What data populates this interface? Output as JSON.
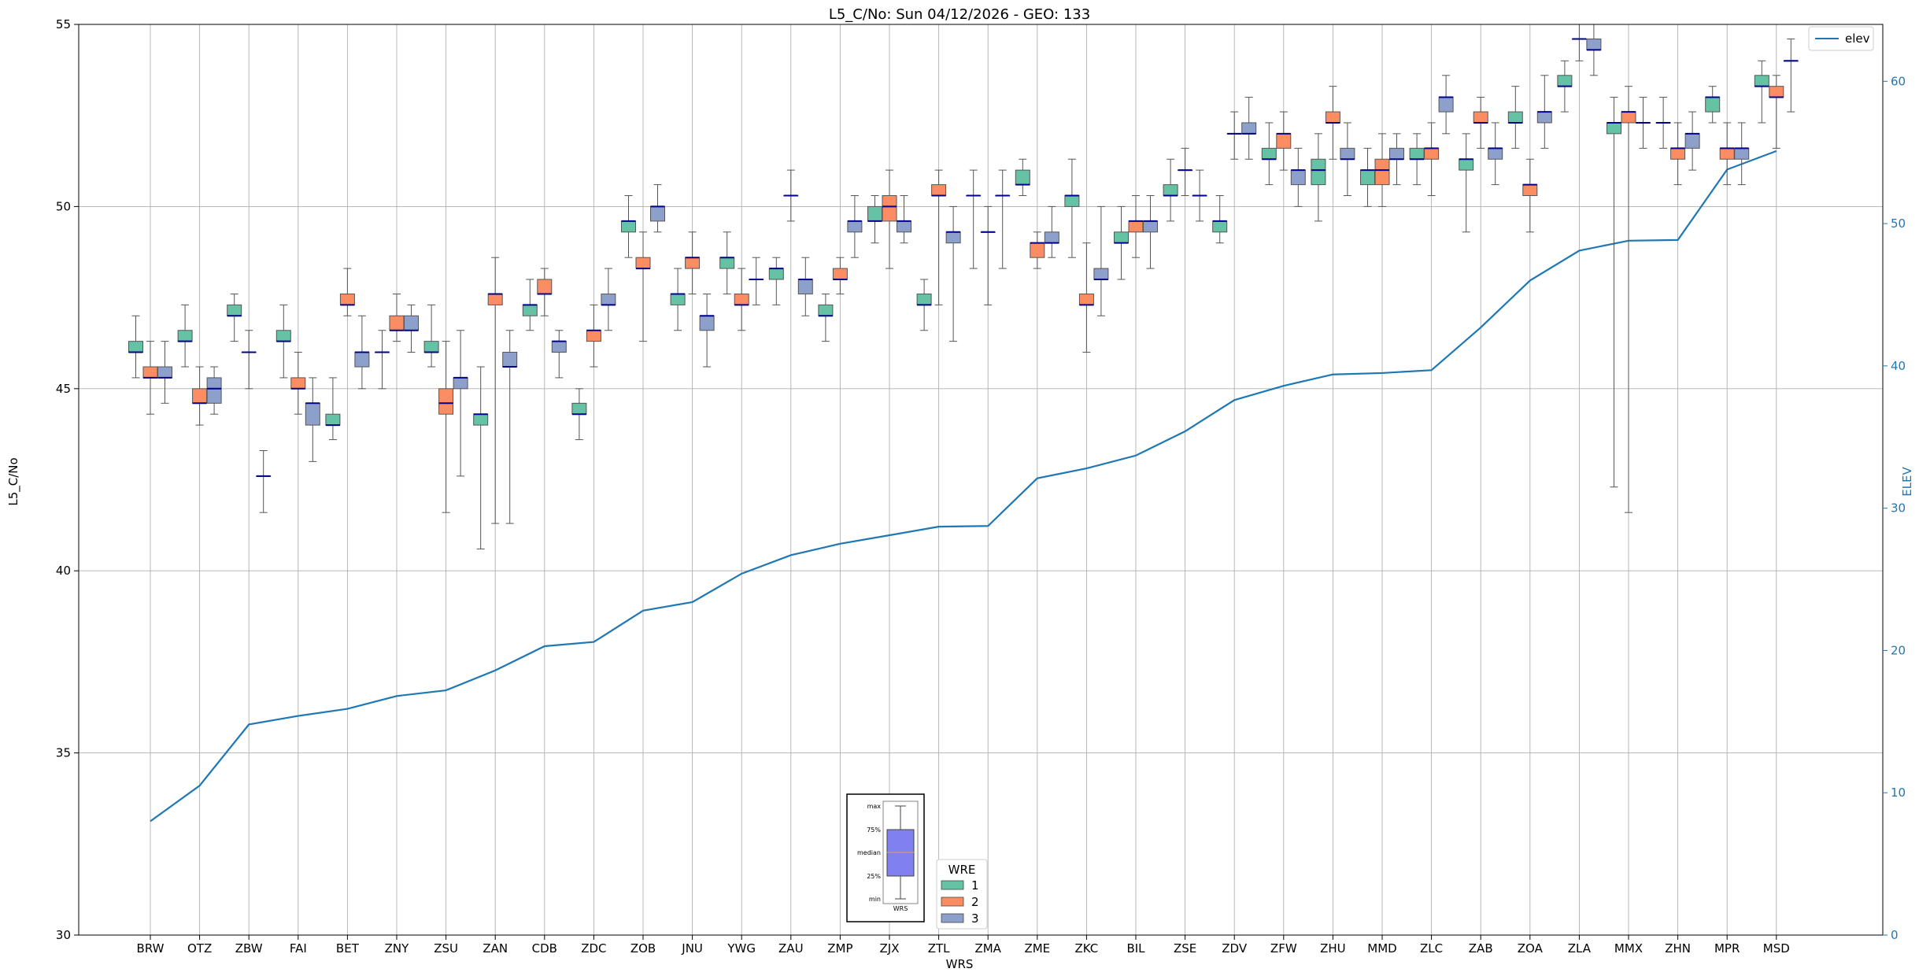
{
  "chart_data": {
    "type": "box",
    "title": "L5_C/No: Sun 04/12/2026 - GEO: 133",
    "xlabel": "WRS",
    "ylabel": "L5_C/No",
    "y2label": "ELEV",
    "ylim": [
      30,
      55
    ],
    "y2lim": [
      0,
      64
    ],
    "yticks": [
      30,
      35,
      40,
      45,
      50,
      55
    ],
    "y2ticks": [
      0,
      10,
      20,
      30,
      40,
      50,
      60
    ],
    "grid": true,
    "categories": [
      "BRW",
      "OTZ",
      "ZBW",
      "FAI",
      "BET",
      "ZNY",
      "ZSU",
      "ZAN",
      "CDB",
      "ZDC",
      "ZOB",
      "JNU",
      "YWG",
      "ZAU",
      "ZMP",
      "ZJX",
      "ZTL",
      "ZMA",
      "ZME",
      "ZKC",
      "BIL",
      "ZSE",
      "ZDV",
      "ZFW",
      "ZHU",
      "MMD",
      "ZLC",
      "ZAB",
      "ZOA",
      "ZLA",
      "MMX",
      "ZHN",
      "MPR",
      "MSD"
    ],
    "colors": {
      "1": "#66c2a5",
      "2": "#fc8d62",
      "3": "#8da0cb",
      "median": "#00008b",
      "elev": "#1f77b4",
      "whisker": "#555555"
    },
    "legend_title": "WRE",
    "legend_entries": [
      "1",
      "2",
      "3"
    ],
    "elev_legend": "elev",
    "key_labels": [
      "max",
      "75%",
      "median",
      "25%",
      "min",
      "WRS"
    ],
    "elev_series": {
      "name": "elev",
      "values": [
        8.0,
        10.5,
        14.8,
        15.4,
        15.9,
        16.8,
        17.2,
        18.6,
        20.3,
        20.6,
        22.8,
        23.4,
        25.4,
        26.7,
        27.5,
        28.1,
        28.7,
        28.75,
        32.1,
        32.8,
        33.7,
        35.4,
        37.6,
        38.6,
        39.4,
        39.5,
        39.7,
        42.7,
        46.0,
        48.1,
        48.8,
        48.85,
        53.8,
        55.1
      ]
    },
    "boxes": [
      {
        "wrs": "BRW",
        "wre": "1",
        "min": 45.3,
        "q1": 46.0,
        "median": 46.0,
        "q3": 46.3,
        "max": 47.0
      },
      {
        "wrs": "BRW",
        "wre": "2",
        "min": 44.3,
        "q1": 45.3,
        "median": 45.3,
        "q3": 45.6,
        "max": 46.3
      },
      {
        "wrs": "BRW",
        "wre": "3",
        "min": 44.6,
        "q1": 45.3,
        "median": 45.3,
        "q3": 45.6,
        "max": 46.3
      },
      {
        "wrs": "OTZ",
        "wre": "1",
        "min": 45.6,
        "q1": 46.3,
        "median": 46.3,
        "q3": 46.6,
        "max": 47.3
      },
      {
        "wrs": "OTZ",
        "wre": "2",
        "min": 44.0,
        "q1": 44.6,
        "median": 44.6,
        "q3": 45.0,
        "max": 45.6
      },
      {
        "wrs": "OTZ",
        "wre": "3",
        "min": 44.3,
        "q1": 44.6,
        "median": 45.0,
        "q3": 45.3,
        "max": 45.6
      },
      {
        "wrs": "ZBW",
        "wre": "1",
        "min": 46.3,
        "q1": 47.0,
        "median": 47.0,
        "q3": 47.3,
        "max": 47.6
      },
      {
        "wrs": "ZBW",
        "wre": "2",
        "min": 45.0,
        "q1": 46.0,
        "median": 46.0,
        "q3": 46.0,
        "max": 46.6
      },
      {
        "wrs": "ZBW",
        "wre": "3",
        "min": 41.6,
        "q1": 42.6,
        "median": 42.6,
        "q3": 42.6,
        "max": 43.3
      },
      {
        "wrs": "FAI",
        "wre": "1",
        "min": 45.3,
        "q1": 46.3,
        "median": 46.3,
        "q3": 46.6,
        "max": 47.3
      },
      {
        "wrs": "FAI",
        "wre": "2",
        "min": 44.3,
        "q1": 45.0,
        "median": 45.0,
        "q3": 45.3,
        "max": 46.0
      },
      {
        "wrs": "FAI",
        "wre": "3",
        "min": 43.0,
        "q1": 44.0,
        "median": 44.6,
        "q3": 44.6,
        "max": 45.3
      },
      {
        "wrs": "BET",
        "wre": "1",
        "min": 43.6,
        "q1": 44.0,
        "median": 44.0,
        "q3": 44.3,
        "max": 45.3
      },
      {
        "wrs": "BET",
        "wre": "2",
        "min": 47.0,
        "q1": 47.3,
        "median": 47.3,
        "q3": 47.6,
        "max": 48.3
      },
      {
        "wrs": "BET",
        "wre": "3",
        "min": 45.0,
        "q1": 45.6,
        "median": 46.0,
        "q3": 46.0,
        "max": 47.0
      },
      {
        "wrs": "ZNY",
        "wre": "1",
        "min": 45.0,
        "q1": 46.0,
        "median": 46.0,
        "q3": 46.0,
        "max": 46.6
      },
      {
        "wrs": "ZNY",
        "wre": "2",
        "min": 46.3,
        "q1": 46.6,
        "median": 46.6,
        "q3": 47.0,
        "max": 47.6
      },
      {
        "wrs": "ZNY",
        "wre": "3",
        "min": 46.0,
        "q1": 46.6,
        "median": 46.6,
        "q3": 47.0,
        "max": 47.3
      },
      {
        "wrs": "ZSU",
        "wre": "1",
        "min": 45.6,
        "q1": 46.0,
        "median": 46.0,
        "q3": 46.3,
        "max": 47.3
      },
      {
        "wrs": "ZSU",
        "wre": "2",
        "min": 41.6,
        "q1": 44.3,
        "median": 44.6,
        "q3": 45.0,
        "max": 46.3
      },
      {
        "wrs": "ZSU",
        "wre": "3",
        "min": 42.6,
        "q1": 45.0,
        "median": 45.3,
        "q3": 45.3,
        "max": 46.6
      },
      {
        "wrs": "ZAN",
        "wre": "1",
        "min": 40.6,
        "q1": 44.0,
        "median": 44.3,
        "q3": 44.3,
        "max": 45.6
      },
      {
        "wrs": "ZAN",
        "wre": "2",
        "min": 41.3,
        "q1": 47.3,
        "median": 47.6,
        "q3": 47.6,
        "max": 48.6
      },
      {
        "wrs": "ZAN",
        "wre": "3",
        "min": 41.3,
        "q1": 45.6,
        "median": 45.6,
        "q3": 46.0,
        "max": 46.6
      },
      {
        "wrs": "CDB",
        "wre": "1",
        "min": 46.6,
        "q1": 47.0,
        "median": 47.3,
        "q3": 47.3,
        "max": 48.0
      },
      {
        "wrs": "CDB",
        "wre": "2",
        "min": 47.0,
        "q1": 47.6,
        "median": 47.6,
        "q3": 48.0,
        "max": 48.3
      },
      {
        "wrs": "CDB",
        "wre": "3",
        "min": 45.3,
        "q1": 46.0,
        "median": 46.3,
        "q3": 46.3,
        "max": 46.6
      },
      {
        "wrs": "ZDC",
        "wre": "1",
        "min": 43.6,
        "q1": 44.3,
        "median": 44.3,
        "q3": 44.6,
        "max": 45.0
      },
      {
        "wrs": "ZDC",
        "wre": "2",
        "min": 45.6,
        "q1": 46.3,
        "median": 46.6,
        "q3": 46.6,
        "max": 47.3
      },
      {
        "wrs": "ZDC",
        "wre": "3",
        "min": 46.6,
        "q1": 47.3,
        "median": 47.3,
        "q3": 47.6,
        "max": 48.3
      },
      {
        "wrs": "ZOB",
        "wre": "1",
        "min": 48.6,
        "q1": 49.3,
        "median": 49.6,
        "q3": 49.6,
        "max": 50.3
      },
      {
        "wrs": "ZOB",
        "wre": "2",
        "min": 46.3,
        "q1": 48.3,
        "median": 48.3,
        "q3": 48.6,
        "max": 49.3
      },
      {
        "wrs": "ZOB",
        "wre": "3",
        "min": 49.3,
        "q1": 49.6,
        "median": 50.0,
        "q3": 50.0,
        "max": 50.6
      },
      {
        "wrs": "JNU",
        "wre": "1",
        "min": 46.6,
        "q1": 47.3,
        "median": 47.6,
        "q3": 47.6,
        "max": 48.3
      },
      {
        "wrs": "JNU",
        "wre": "2",
        "min": 47.6,
        "q1": 48.3,
        "median": 48.6,
        "q3": 48.6,
        "max": 49.3
      },
      {
        "wrs": "JNU",
        "wre": "3",
        "min": 45.6,
        "q1": 46.6,
        "median": 47.0,
        "q3": 47.0,
        "max": 47.6
      },
      {
        "wrs": "YWG",
        "wre": "1",
        "min": 47.6,
        "q1": 48.3,
        "median": 48.6,
        "q3": 48.6,
        "max": 49.3
      },
      {
        "wrs": "YWG",
        "wre": "2",
        "min": 46.6,
        "q1": 47.3,
        "median": 47.3,
        "q3": 47.6,
        "max": 48.3
      },
      {
        "wrs": "YWG",
        "wre": "3",
        "min": 47.3,
        "q1": 48.0,
        "median": 48.0,
        "q3": 48.0,
        "max": 48.6
      },
      {
        "wrs": "ZAU",
        "wre": "1",
        "min": 47.3,
        "q1": 48.0,
        "median": 48.3,
        "q3": 48.3,
        "max": 48.6
      },
      {
        "wrs": "ZAU",
        "wre": "2",
        "min": 49.6,
        "q1": 50.3,
        "median": 50.3,
        "q3": 50.3,
        "max": 51.0
      },
      {
        "wrs": "ZAU",
        "wre": "3",
        "min": 47.0,
        "q1": 47.6,
        "median": 48.0,
        "q3": 48.0,
        "max": 48.6
      },
      {
        "wrs": "ZMP",
        "wre": "1",
        "min": 46.3,
        "q1": 47.0,
        "median": 47.0,
        "q3": 47.3,
        "max": 47.6
      },
      {
        "wrs": "ZMP",
        "wre": "2",
        "min": 47.6,
        "q1": 48.0,
        "median": 48.0,
        "q3": 48.3,
        "max": 48.6
      },
      {
        "wrs": "ZMP",
        "wre": "3",
        "min": 48.6,
        "q1": 49.3,
        "median": 49.6,
        "q3": 49.6,
        "max": 50.3
      },
      {
        "wrs": "ZJX",
        "wre": "1",
        "min": 49.0,
        "q1": 49.6,
        "median": 49.6,
        "q3": 50.0,
        "max": 50.3
      },
      {
        "wrs": "ZJX",
        "wre": "2",
        "min": 48.3,
        "q1": 49.6,
        "median": 50.0,
        "q3": 50.3,
        "max": 51.0
      },
      {
        "wrs": "ZJX",
        "wre": "3",
        "min": 49.0,
        "q1": 49.3,
        "median": 49.6,
        "q3": 49.6,
        "max": 50.3
      },
      {
        "wrs": "ZTL",
        "wre": "1",
        "min": 46.6,
        "q1": 47.3,
        "median": 47.3,
        "q3": 47.6,
        "max": 48.0
      },
      {
        "wrs": "ZTL",
        "wre": "2",
        "min": 47.3,
        "q1": 50.3,
        "median": 50.3,
        "q3": 50.6,
        "max": 51.0
      },
      {
        "wrs": "ZTL",
        "wre": "3",
        "min": 46.3,
        "q1": 49.0,
        "median": 49.3,
        "q3": 49.3,
        "max": 50.0
      },
      {
        "wrs": "ZMA",
        "wre": "1",
        "min": 48.3,
        "q1": 50.3,
        "median": 50.3,
        "q3": 50.3,
        "max": 51.0
      },
      {
        "wrs": "ZMA",
        "wre": "2",
        "min": 47.3,
        "q1": 49.3,
        "median": 49.3,
        "q3": 49.3,
        "max": 50.0
      },
      {
        "wrs": "ZMA",
        "wre": "3",
        "min": 48.3,
        "q1": 50.3,
        "median": 50.3,
        "q3": 50.3,
        "max": 51.0
      },
      {
        "wrs": "ZME",
        "wre": "1",
        "min": 50.3,
        "q1": 50.6,
        "median": 50.6,
        "q3": 51.0,
        "max": 51.3
      },
      {
        "wrs": "ZME",
        "wre": "2",
        "min": 48.3,
        "q1": 48.6,
        "median": 49.0,
        "q3": 49.0,
        "max": 49.3
      },
      {
        "wrs": "ZME",
        "wre": "3",
        "min": 48.6,
        "q1": 49.0,
        "median": 49.0,
        "q3": 49.3,
        "max": 50.0
      },
      {
        "wrs": "ZKC",
        "wre": "1",
        "min": 48.6,
        "q1": 50.0,
        "median": 50.3,
        "q3": 50.3,
        "max": 51.3
      },
      {
        "wrs": "ZKC",
        "wre": "2",
        "min": 46.0,
        "q1": 47.3,
        "median": 47.3,
        "q3": 47.6,
        "max": 49.0
      },
      {
        "wrs": "ZKC",
        "wre": "3",
        "min": 47.0,
        "q1": 48.0,
        "median": 48.0,
        "q3": 48.3,
        "max": 50.0
      },
      {
        "wrs": "BIL",
        "wre": "1",
        "min": 48.0,
        "q1": 49.0,
        "median": 49.0,
        "q3": 49.3,
        "max": 50.0
      },
      {
        "wrs": "BIL",
        "wre": "2",
        "min": 48.6,
        "q1": 49.3,
        "median": 49.6,
        "q3": 49.6,
        "max": 50.3
      },
      {
        "wrs": "BIL",
        "wre": "3",
        "min": 48.3,
        "q1": 49.3,
        "median": 49.6,
        "q3": 49.6,
        "max": 50.3
      },
      {
        "wrs": "ZSE",
        "wre": "1",
        "min": 49.6,
        "q1": 50.3,
        "median": 50.3,
        "q3": 50.6,
        "max": 51.3
      },
      {
        "wrs": "ZSE",
        "wre": "2",
        "min": 50.3,
        "q1": 51.0,
        "median": 51.0,
        "q3": 51.0,
        "max": 51.6
      },
      {
        "wrs": "ZSE",
        "wre": "3",
        "min": 49.6,
        "q1": 50.3,
        "median": 50.3,
        "q3": 50.3,
        "max": 51.0
      },
      {
        "wrs": "ZDV",
        "wre": "1",
        "min": 49.0,
        "q1": 49.3,
        "median": 49.6,
        "q3": 49.6,
        "max": 50.3
      },
      {
        "wrs": "ZDV",
        "wre": "2",
        "min": 51.3,
        "q1": 52.0,
        "median": 52.0,
        "q3": 52.0,
        "max": 52.6
      },
      {
        "wrs": "ZDV",
        "wre": "3",
        "min": 51.3,
        "q1": 52.0,
        "median": 52.0,
        "q3": 52.3,
        "max": 53.0
      },
      {
        "wrs": "ZFW",
        "wre": "1",
        "min": 50.6,
        "q1": 51.3,
        "median": 51.3,
        "q3": 51.6,
        "max": 52.3
      },
      {
        "wrs": "ZFW",
        "wre": "2",
        "min": 51.0,
        "q1": 51.6,
        "median": 52.0,
        "q3": 52.0,
        "max": 52.6
      },
      {
        "wrs": "ZFW",
        "wre": "3",
        "min": 50.0,
        "q1": 50.6,
        "median": 51.0,
        "q3": 51.0,
        "max": 51.6
      },
      {
        "wrs": "ZHU",
        "wre": "1",
        "min": 49.6,
        "q1": 50.6,
        "median": 51.0,
        "q3": 51.3,
        "max": 52.0
      },
      {
        "wrs": "ZHU",
        "wre": "2",
        "min": 51.3,
        "q1": 52.3,
        "median": 52.3,
        "q3": 52.6,
        "max": 53.3
      },
      {
        "wrs": "ZHU",
        "wre": "3",
        "min": 50.3,
        "q1": 51.3,
        "median": 51.3,
        "q3": 51.6,
        "max": 52.3
      },
      {
        "wrs": "MMD",
        "wre": "1",
        "min": 50.0,
        "q1": 50.6,
        "median": 51.0,
        "q3": 51.0,
        "max": 51.6
      },
      {
        "wrs": "MMD",
        "wre": "2",
        "min": 50.0,
        "q1": 50.6,
        "median": 51.0,
        "q3": 51.3,
        "max": 52.0
      },
      {
        "wrs": "MMD",
        "wre": "3",
        "min": 50.6,
        "q1": 51.3,
        "median": 51.3,
        "q3": 51.6,
        "max": 52.0
      },
      {
        "wrs": "ZLC",
        "wre": "1",
        "min": 50.6,
        "q1": 51.3,
        "median": 51.3,
        "q3": 51.6,
        "max": 52.0
      },
      {
        "wrs": "ZLC",
        "wre": "2",
        "min": 50.3,
        "q1": 51.3,
        "median": 51.6,
        "q3": 51.6,
        "max": 52.3
      },
      {
        "wrs": "ZLC",
        "wre": "3",
        "min": 52.0,
        "q1": 52.6,
        "median": 53.0,
        "q3": 53.0,
        "max": 53.6
      },
      {
        "wrs": "ZAB",
        "wre": "1",
        "min": 49.3,
        "q1": 51.0,
        "median": 51.3,
        "q3": 51.3,
        "max": 52.0
      },
      {
        "wrs": "ZAB",
        "wre": "2",
        "min": 51.6,
        "q1": 52.3,
        "median": 52.3,
        "q3": 52.6,
        "max": 53.0
      },
      {
        "wrs": "ZAB",
        "wre": "3",
        "min": 50.6,
        "q1": 51.3,
        "median": 51.6,
        "q3": 51.6,
        "max": 52.3
      },
      {
        "wrs": "ZOA",
        "wre": "1",
        "min": 51.6,
        "q1": 52.3,
        "median": 52.3,
        "q3": 52.6,
        "max": 53.3
      },
      {
        "wrs": "ZOA",
        "wre": "2",
        "min": 49.3,
        "q1": 50.3,
        "median": 50.6,
        "q3": 50.6,
        "max": 51.3
      },
      {
        "wrs": "ZOA",
        "wre": "3",
        "min": 51.6,
        "q1": 52.3,
        "median": 52.6,
        "q3": 52.6,
        "max": 53.6
      },
      {
        "wrs": "ZLA",
        "wre": "1",
        "min": 52.6,
        "q1": 53.3,
        "median": 53.3,
        "q3": 53.6,
        "max": 54.0
      },
      {
        "wrs": "ZLA",
        "wre": "2",
        "min": 54.0,
        "q1": 54.6,
        "median": 54.6,
        "q3": 54.6,
        "max": 55.0
      },
      {
        "wrs": "ZLA",
        "wre": "3",
        "min": 53.6,
        "q1": 54.3,
        "median": 54.3,
        "q3": 54.6,
        "max": 55.0
      },
      {
        "wrs": "MMX",
        "wre": "1",
        "min": 42.3,
        "q1": 52.0,
        "median": 52.3,
        "q3": 52.3,
        "max": 53.0
      },
      {
        "wrs": "MMX",
        "wre": "2",
        "min": 41.6,
        "q1": 52.3,
        "median": 52.6,
        "q3": 52.6,
        "max": 53.3
      },
      {
        "wrs": "MMX",
        "wre": "3",
        "min": 51.6,
        "q1": 52.3,
        "median": 52.3,
        "q3": 52.3,
        "max": 53.0
      },
      {
        "wrs": "ZHN",
        "wre": "1",
        "min": 51.6,
        "q1": 52.3,
        "median": 52.3,
        "q3": 52.3,
        "max": 53.0
      },
      {
        "wrs": "ZHN",
        "wre": "2",
        "min": 50.6,
        "q1": 51.3,
        "median": 51.6,
        "q3": 51.6,
        "max": 52.3
      },
      {
        "wrs": "ZHN",
        "wre": "3",
        "min": 51.0,
        "q1": 51.6,
        "median": 52.0,
        "q3": 52.0,
        "max": 52.6
      },
      {
        "wrs": "MPR",
        "wre": "1",
        "min": 52.3,
        "q1": 52.6,
        "median": 53.0,
        "q3": 53.0,
        "max": 53.3
      },
      {
        "wrs": "MPR",
        "wre": "2",
        "min": 50.6,
        "q1": 51.3,
        "median": 51.6,
        "q3": 51.6,
        "max": 52.3
      },
      {
        "wrs": "MPR",
        "wre": "3",
        "min": 50.6,
        "q1": 51.3,
        "median": 51.6,
        "q3": 51.6,
        "max": 52.3
      },
      {
        "wrs": "MSD",
        "wre": "1",
        "min": 52.3,
        "q1": 53.3,
        "median": 53.3,
        "q3": 53.6,
        "max": 54.0
      },
      {
        "wrs": "MSD",
        "wre": "2",
        "min": 51.6,
        "q1": 53.0,
        "median": 53.0,
        "q3": 53.3,
        "max": 53.6
      },
      {
        "wrs": "MSD",
        "wre": "3",
        "min": 52.6,
        "q1": 54.0,
        "median": 54.0,
        "q3": 54.0,
        "max": 54.6
      }
    ]
  }
}
